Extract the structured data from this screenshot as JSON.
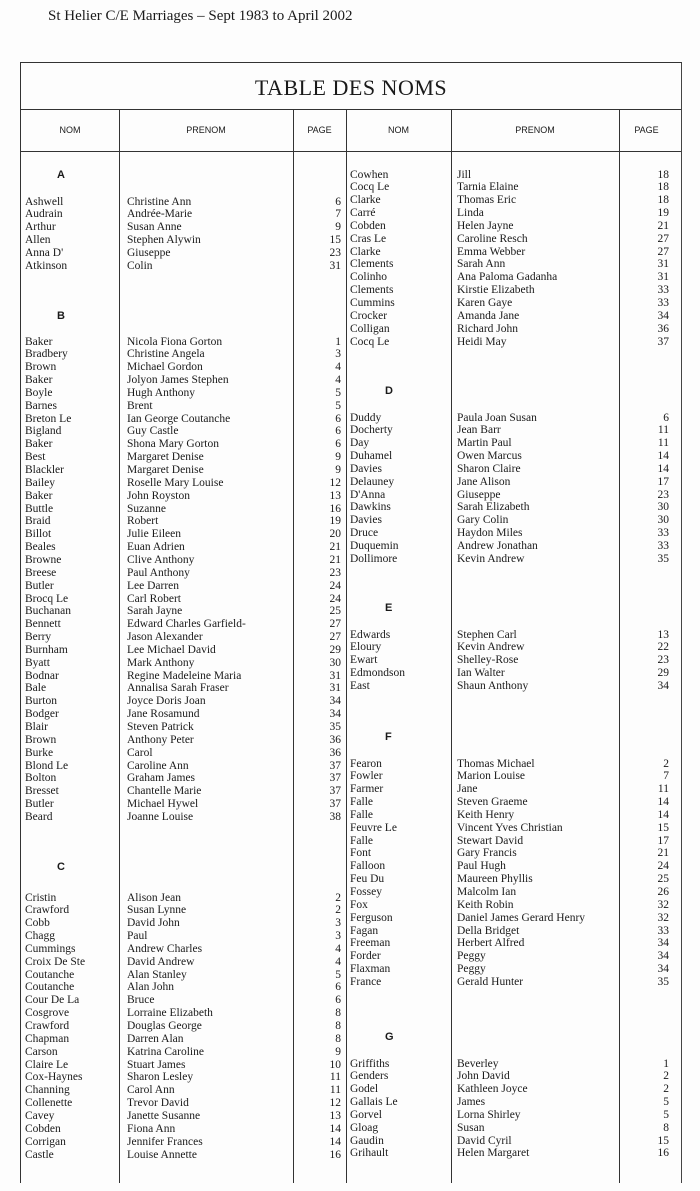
{
  "header": "St Helier C/E Marriages – Sept 1983 to April 2002",
  "title": "TABLE DES NOMS",
  "columns": {
    "nom": "NOM",
    "prenom": "PRENOM",
    "page": "PAGE"
  },
  "sections": [
    {
      "letter": "A",
      "entries": [
        [
          "Ashwell",
          "Christine Ann",
          "6"
        ],
        [
          "Audrain",
          "Andrée-Marie",
          "7"
        ],
        [
          "Arthur",
          "Susan Anne",
          "9"
        ],
        [
          "Allen",
          "Stephen Alywin",
          "15"
        ],
        [
          "Anna D'",
          "Giuseppe",
          "23"
        ],
        [
          "Atkinson",
          "Colin",
          "31"
        ]
      ]
    },
    {
      "letter": "B",
      "entries": [
        [
          "Baker",
          "Nicola Fiona Gorton",
          "1"
        ],
        [
          "Bradbery",
          "Christine Angela",
          "3"
        ],
        [
          "Brown",
          "Michael Gordon",
          "4"
        ],
        [
          "Baker",
          "Jolyon James Stephen",
          "4"
        ],
        [
          "Boyle",
          "Hugh Anthony",
          "5"
        ],
        [
          "Barnes",
          "Brent",
          "5"
        ],
        [
          "Breton Le",
          "Ian George Coutanche",
          "6"
        ],
        [
          "Bigland",
          "Guy Castle",
          "6"
        ],
        [
          "Baker",
          "Shona Mary Gorton",
          "6"
        ],
        [
          "Best",
          "Margaret Denise",
          "9"
        ],
        [
          "Blackler",
          "Margaret Denise",
          "9"
        ],
        [
          "Bailey",
          "Roselle Mary Louise",
          "12"
        ],
        [
          "Baker",
          "John Royston",
          "13"
        ],
        [
          "Buttle",
          "Suzanne",
          "16"
        ],
        [
          "Braid",
          "Robert",
          "19"
        ],
        [
          "Billot",
          "Julie Eileen",
          "20"
        ],
        [
          "Beales",
          "Euan Adrien",
          "21"
        ],
        [
          "Browne",
          "Clive Anthony",
          "21"
        ],
        [
          "Breese",
          "Paul Anthony",
          "23"
        ],
        [
          "Butler",
          "Lee Darren",
          "24"
        ],
        [
          "Brocq Le",
          "Carl Robert",
          "24"
        ],
        [
          "Buchanan",
          "Sarah Jayne",
          "25"
        ],
        [
          "Bennett",
          "Edward Charles Garfield-",
          "27"
        ],
        [
          "Berry",
          "Jason Alexander",
          "27"
        ],
        [
          "Burnham",
          "Lee Michael David",
          "29"
        ],
        [
          "Byatt",
          "Mark Anthony",
          "30"
        ],
        [
          "Bodnar",
          "Regine Madeleine Maria",
          "31"
        ],
        [
          "Bale",
          "Annalisa Sarah Fraser",
          "31"
        ],
        [
          "Burton",
          "Joyce Doris Joan",
          "34"
        ],
        [
          "Bodger",
          "Jane Rosamund",
          "34"
        ],
        [
          "Blair",
          "Steven Patrick",
          "35"
        ],
        [
          "Brown",
          "Anthony Peter",
          "36"
        ],
        [
          "Burke",
          "Carol",
          "36"
        ],
        [
          "Blond Le",
          "Caroline Ann",
          "37"
        ],
        [
          "Bolton",
          "Graham James",
          "37"
        ],
        [
          "Bresset",
          "Chantelle Marie",
          "37"
        ],
        [
          "Butler",
          "Michael Hywel",
          "37"
        ],
        [
          "Beard",
          "Joanne Louise",
          "38"
        ]
      ]
    },
    {
      "letter": "C",
      "entries": [
        [
          "Cristin",
          "Alison Jean",
          "2"
        ],
        [
          "Crawford",
          "Susan Lynne",
          "2"
        ],
        [
          "Cobb",
          "David John",
          "3"
        ],
        [
          "Chagg",
          "Paul",
          "3"
        ],
        [
          "Cummings",
          "Andrew Charles",
          "4"
        ],
        [
          "Croix De Ste",
          "David Andrew",
          "4"
        ],
        [
          "Coutanche",
          "Alan Stanley",
          "5"
        ],
        [
          "Coutanche",
          "Alan John",
          "6"
        ],
        [
          "Cour De La",
          "Bruce",
          "6"
        ],
        [
          "Cosgrove",
          "Lorraine Elizabeth",
          "8"
        ],
        [
          "Crawford",
          "Douglas George",
          "8"
        ],
        [
          "Chapman",
          "Darren Alan",
          "8"
        ],
        [
          "Carson",
          "Katrina Caroline",
          "9"
        ],
        [
          "Claire Le",
          "Stuart James",
          "10"
        ],
        [
          "Cox-Haynes",
          "Sharon Lesley",
          "11"
        ],
        [
          "Channing",
          "Carol Ann",
          "11"
        ],
        [
          "Collenette",
          "Trevor David",
          "12"
        ],
        [
          "Cavey",
          "Janette Susanne",
          "13"
        ],
        [
          "Cobden",
          "Fiona Ann",
          "14"
        ],
        [
          "Corrigan",
          "Jennifer Frances",
          "14"
        ],
        [
          "Castle",
          "Louise Annette",
          "16"
        ]
      ]
    },
    {
      "letter": "",
      "entries": [
        [
          "Cowhen",
          "Jill",
          "18"
        ],
        [
          "Cocq Le",
          "Tarnia Elaine",
          "18"
        ],
        [
          "Clarke",
          "Thomas Eric",
          "18"
        ],
        [
          "Carré",
          "Linda",
          "19"
        ],
        [
          "Cobden",
          "Helen Jayne",
          "21"
        ],
        [
          "Cras Le",
          "Caroline Resch",
          "27"
        ],
        [
          "Clarke",
          "Emma Webber",
          "27"
        ],
        [
          "Clements",
          "Sarah Ann",
          "31"
        ],
        [
          "Colinho",
          "Ana Paloma Gadanha",
          "31"
        ],
        [
          "Clements",
          "Kirstie Elizabeth",
          "33"
        ],
        [
          "Cummins",
          "Karen Gaye",
          "33"
        ],
        [
          "Crocker",
          "Amanda Jane",
          "34"
        ],
        [
          "Colligan",
          "Richard John",
          "36"
        ],
        [
          "Cocq Le",
          "Heidi May",
          "37"
        ]
      ]
    },
    {
      "letter": "D",
      "entries": [
        [
          "Duddy",
          "Paula Joan Susan",
          "6"
        ],
        [
          "Docherty",
          "Jean Barr",
          "11"
        ],
        [
          "Day",
          "Martin Paul",
          "11"
        ],
        [
          "Duhamel",
          "Owen Marcus",
          "14"
        ],
        [
          "Davies",
          "Sharon Claire",
          "14"
        ],
        [
          "Delauney",
          "Jane Alison",
          "17"
        ],
        [
          "D'Anna",
          "Giuseppe",
          "23"
        ],
        [
          "Dawkins",
          "Sarah Elizabeth",
          "30"
        ],
        [
          "Davies",
          "Gary Colin",
          "30"
        ],
        [
          "Druce",
          "Haydon Miles",
          "33"
        ],
        [
          "Duquemin",
          "Andrew Jonathan",
          "33"
        ],
        [
          "Dollimore",
          "Kevin Andrew",
          "35"
        ]
      ]
    },
    {
      "letter": "E",
      "entries": [
        [
          "Edwards",
          "Stephen Carl",
          "13"
        ],
        [
          "Eloury",
          "Kevin Andrew",
          "22"
        ],
        [
          "Ewart",
          "Shelley-Rose",
          "23"
        ],
        [
          "Edmondson",
          "Ian Walter",
          "29"
        ],
        [
          "East",
          "Shaun Anthony",
          "34"
        ]
      ]
    },
    {
      "letter": "F",
      "entries": [
        [
          "Fearon",
          "Thomas Michael",
          "2"
        ],
        [
          "Fowler",
          "Marion Louise",
          "7"
        ],
        [
          "Farmer",
          "Jane",
          "11"
        ],
        [
          "Falle",
          "Steven Graeme",
          "14"
        ],
        [
          "Falle",
          "Keith Henry",
          "14"
        ],
        [
          "Feuvre Le",
          "Vincent Yves Christian",
          "15"
        ],
        [
          "Falle",
          "Stewart David",
          "17"
        ],
        [
          "Font",
          "Gary Francis",
          "21"
        ],
        [
          "Falloon",
          "Paul Hugh",
          "24"
        ],
        [
          "Feu Du",
          "Maureen Phyllis",
          "25"
        ],
        [
          "Fossey",
          "Malcolm Ian",
          "26"
        ],
        [
          "Fox",
          "Keith Robin",
          "32"
        ],
        [
          "Ferguson",
          "Daniel James Gerard Henry",
          "32"
        ],
        [
          "Fagan",
          "Della Bridget",
          "33"
        ],
        [
          "Freeman",
          "Herbert Alfred",
          "34"
        ],
        [
          "Forder",
          "Peggy",
          "34"
        ],
        [
          "Flaxman",
          "Peggy",
          "34"
        ],
        [
          "France",
          "Gerald Hunter",
          "35"
        ]
      ]
    },
    {
      "letter": "G",
      "entries": [
        [
          "Griffiths",
          "Beverley",
          "1"
        ],
        [
          "Genders",
          "John David",
          "2"
        ],
        [
          "Godel",
          "Kathleen Joyce",
          "2"
        ],
        [
          "Gallais Le",
          "James",
          "5"
        ],
        [
          "Gorvel",
          "Lorna Shirley",
          "5"
        ],
        [
          "Gloag",
          "Susan",
          "8"
        ],
        [
          "Gaudin",
          "David Cyril",
          "15"
        ],
        [
          "Grihault",
          "Helen Margaret",
          "16"
        ]
      ]
    }
  ]
}
